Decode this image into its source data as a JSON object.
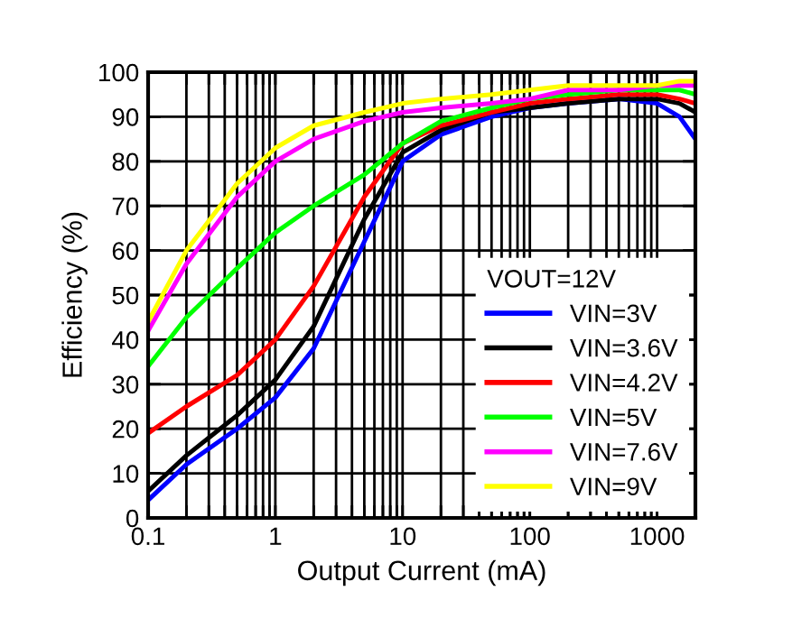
{
  "chart_data": {
    "type": "line",
    "xlabel": "Output Current (mA)",
    "ylabel": "Efficiency (%)",
    "log": "x",
    "grid": true,
    "legend": "bottom right",
    "legend_title": "VOUT=12V",
    "x": [
      0.1,
      0.2,
      0.5,
      1,
      2,
      5,
      10,
      20,
      50,
      100,
      200,
      500,
      1000,
      1500,
      2000
    ],
    "series": [
      {
        "name": "VIN=3V",
        "color": "#0000ff",
        "values": [
          4,
          12,
          20,
          27,
          38,
          62,
          80,
          86,
          90,
          92,
          93,
          94,
          93,
          90,
          85
        ]
      },
      {
        "name": "VIN=3.6V",
        "color": "#000000",
        "values": [
          6,
          14,
          23,
          31,
          43,
          67,
          82,
          87,
          91,
          92,
          93,
          94,
          94,
          93,
          91
        ]
      },
      {
        "name": "VIN=4.2V",
        "color": "#ff0000",
        "values": [
          19,
          25,
          32,
          40,
          52,
          72,
          84,
          88,
          91,
          93,
          94,
          95,
          95,
          94,
          93
        ]
      },
      {
        "name": "VIN=5V",
        "color": "#00ff00",
        "values": [
          34,
          45,
          56,
          64,
          70,
          77,
          84,
          89,
          92,
          94,
          95,
          96,
          96,
          96,
          95
        ]
      },
      {
        "name": "VIN=7.6V",
        "color": "#ff00ff",
        "values": [
          42,
          57,
          72,
          80,
          85,
          89,
          91,
          92,
          93,
          94,
          96,
          96,
          97,
          97,
          97
        ]
      },
      {
        "name": "VIN=9V",
        "color": "#ffff00",
        "values": [
          44,
          60,
          75,
          83,
          88,
          91,
          93,
          94,
          95,
          96,
          97,
          97,
          97,
          98,
          98
        ]
      }
    ],
    "xlim": [
      0.1,
      2000
    ],
    "xticks": [
      0.1,
      {
        "value": 0.2,
        "label": null
      },
      {
        "value": 0.3,
        "label": null
      },
      {
        "value": 0.4,
        "label": null
      },
      {
        "value": 0.5,
        "label": null
      },
      {
        "value": 0.6,
        "label": null
      },
      {
        "value": 0.7,
        "label": null
      },
      {
        "value": 0.8,
        "label": null
      },
      {
        "value": 0.9,
        "label": null
      },
      1,
      {
        "value": 2,
        "label": null
      },
      {
        "value": 3,
        "label": null
      },
      {
        "value": 4,
        "label": null
      },
      {
        "value": 5,
        "label": null
      },
      {
        "value": 6,
        "label": null
      },
      {
        "value": 7,
        "label": null
      },
      {
        "value": 8,
        "label": null
      },
      {
        "value": 9,
        "label": null
      },
      10,
      {
        "value": 20,
        "label": null
      },
      {
        "value": 30,
        "label": null
      },
      {
        "value": 40,
        "label": null
      },
      {
        "value": 50,
        "label": null
      },
      {
        "value": 60,
        "label": null
      },
      {
        "value": 70,
        "label": null
      },
      {
        "value": 80,
        "label": null
      },
      {
        "value": 90,
        "label": null
      },
      100,
      {
        "value": 200,
        "label": null
      },
      {
        "value": 300,
        "label": null
      },
      {
        "value": 400,
        "label": null
      },
      {
        "value": 500,
        "label": null
      },
      {
        "value": 600,
        "label": null
      },
      {
        "value": 700,
        "label": null
      },
      {
        "value": 800,
        "label": null
      },
      {
        "value": 900,
        "label": null
      },
      1000,
      {
        "value": 2000,
        "label": null
      }
    ],
    "ylim": [
      0,
      100
    ],
    "yticks": [
      0,
      10,
      20,
      30,
      40,
      50,
      60,
      70,
      80,
      90,
      100
    ]
  }
}
